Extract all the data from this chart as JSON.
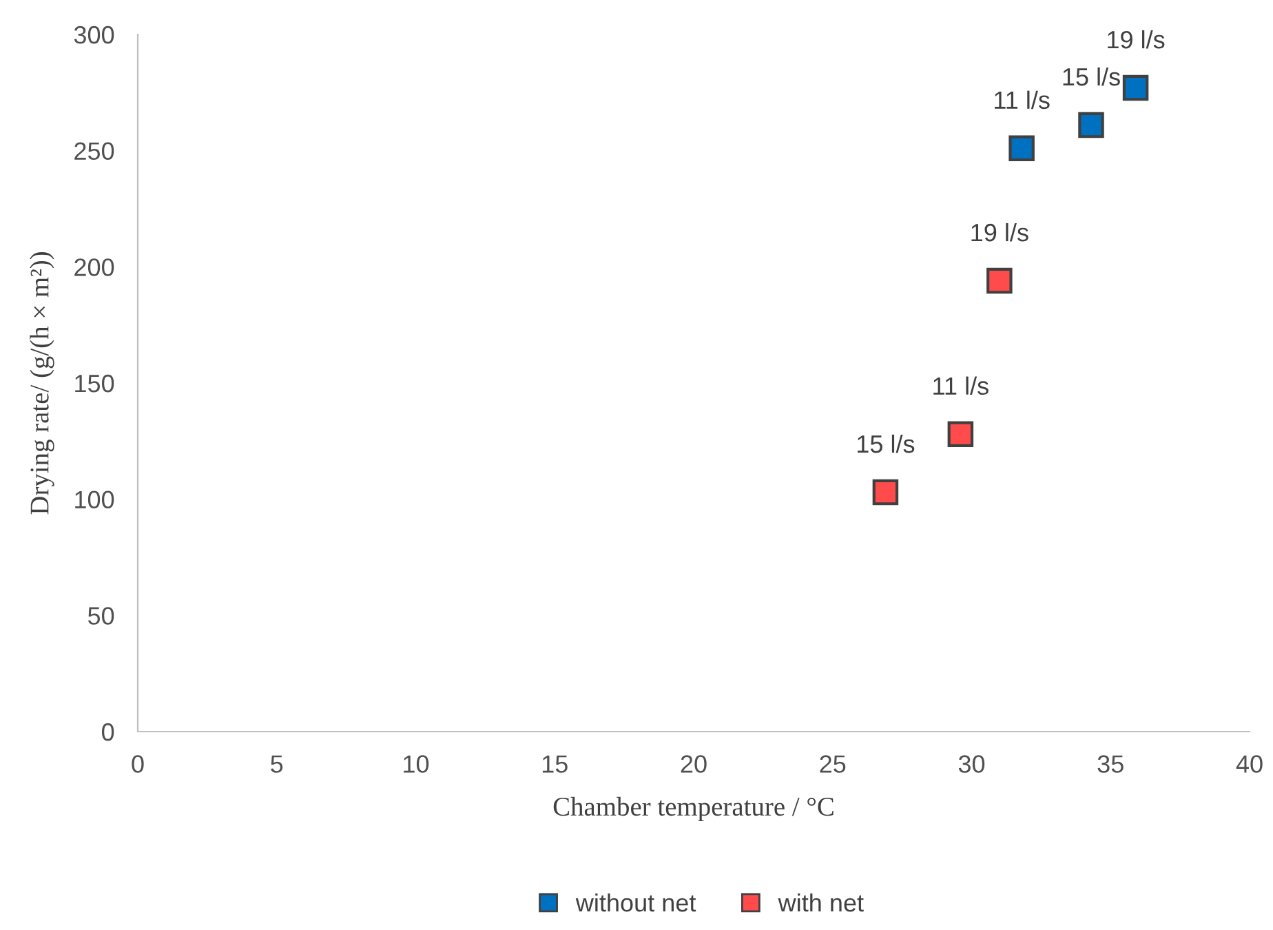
{
  "chart_data": {
    "type": "scatter",
    "xlabel": "Chamber temperature / °C",
    "ylabel": "Drying rate/ (g/(h × m²))",
    "series": [
      {
        "name": "without net",
        "color": "#0070c0",
        "x": [
          31.8,
          34.3,
          35.9
        ],
        "values": [
          251,
          261,
          277
        ]
      },
      {
        "name": "with net",
        "color": "#ff4b4b",
        "x": [
          31.0,
          29.6,
          26.9
        ],
        "values": [
          194,
          128,
          103
        ]
      }
    ],
    "annotations": [
      {
        "text": "11 l/s",
        "x": 31.8,
        "y": 251
      },
      {
        "text": "15 l/s",
        "x": 34.3,
        "y": 261
      },
      {
        "text": "19 l/s",
        "x": 35.9,
        "y": 277
      },
      {
        "text": "19 l/s",
        "x": 31.0,
        "y": 194
      },
      {
        "text": "11 l/s",
        "x": 29.6,
        "y": 128
      },
      {
        "text": "15 l/s",
        "x": 26.9,
        "y": 103
      }
    ],
    "xlim": [
      0,
      40
    ],
    "xticks": [
      0,
      5,
      10,
      15,
      20,
      25,
      30,
      35,
      40
    ],
    "ylim": [
      0,
      300
    ],
    "yticks": [
      0,
      50,
      100,
      150,
      200,
      250,
      300
    ],
    "marker": "square",
    "grid": false,
    "legend": "bottom"
  }
}
